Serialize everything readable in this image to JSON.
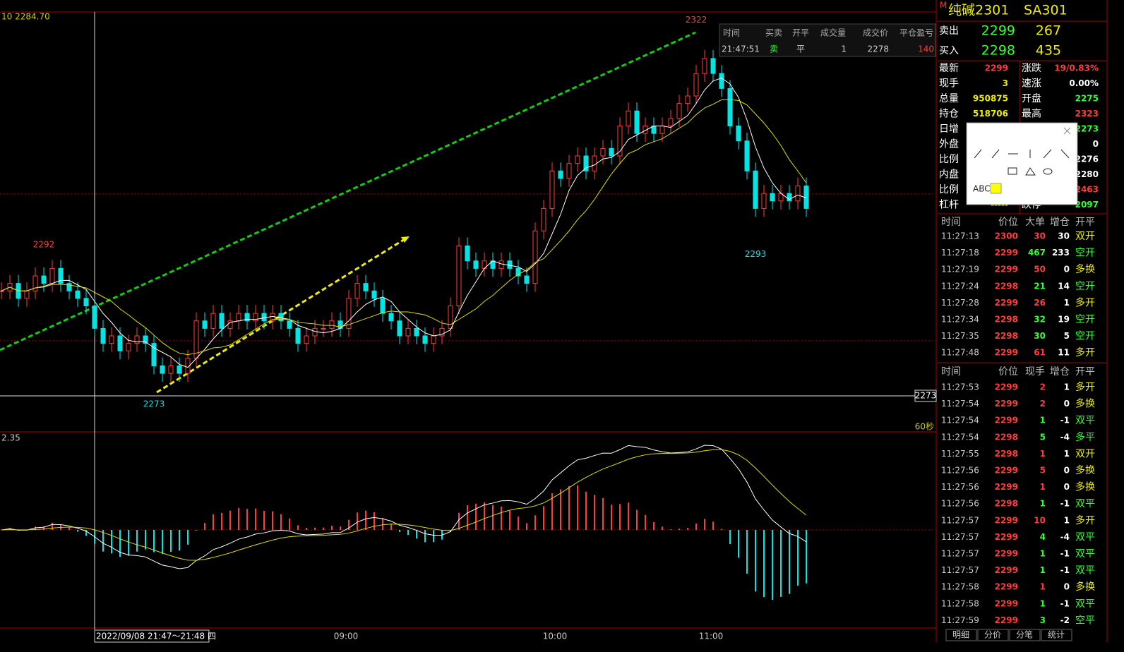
{
  "chart_data": {
    "type": "candlestick",
    "corner_label": "10 2284.70",
    "ylim": [
      2268.2,
      2324.2
    ],
    "closes": [
      2287,
      2288,
      2286,
      2287,
      2289,
      2288,
      2290,
      2288,
      2287,
      2286,
      2285,
      2282,
      2280,
      2281,
      2279,
      2280,
      2281,
      2280,
      2277,
      2276,
      2277,
      2276,
      2278,
      2283,
      2282,
      2284,
      2282,
      2283,
      2284,
      2283,
      2284,
      2283,
      2284,
      2283,
      2282,
      2280,
      2281,
      2282,
      2282,
      2283,
      2282,
      2286,
      2288,
      2287,
      2286,
      2284,
      2283,
      2281,
      2282,
      2281,
      2280,
      2281,
      2282,
      2285,
      2293,
      2291,
      2290,
      2291,
      2290,
      2291,
      2290,
      2289,
      2288,
      2295,
      2298,
      2303,
      2302,
      2304,
      2305,
      2303,
      2305,
      2306,
      2305,
      2309,
      2311,
      2308,
      2309,
      2308,
      2309,
      2310,
      2312,
      2313,
      2316,
      2318,
      2316,
      2314,
      2309,
      2307,
      2303,
      2298,
      2300,
      2299,
      2300,
      2299,
      2301,
      2298
    ],
    "annotations": [
      {
        "text": "2322",
        "value": 2322,
        "index": 82
      },
      {
        "text": "2292",
        "value": 2292,
        "index": 5
      },
      {
        "text": "2273",
        "value": 2273,
        "index": 18
      },
      {
        "text": "2293",
        "value": 2293,
        "index": 89
      }
    ],
    "price_line": {
      "value": 2273,
      "label": "2273"
    },
    "period": "60秒",
    "macd_label": "2.35",
    "x_cursor_label": "2022/09/08 21:47～21:48 四",
    "xticks": [
      "09:00",
      "10:00",
      "11:00"
    ],
    "trade_popup": {
      "headers": [
        "时间",
        "买卖",
        "开平",
        "成交量",
        "成交价",
        "平仓盈亏"
      ],
      "row": [
        "21:47:51",
        "卖",
        "平",
        "1",
        "2278",
        "140"
      ]
    }
  },
  "quote": {
    "mark": "M",
    "name": "纯碱2301",
    "code": "SA301",
    "ask": {
      "label": "卖出",
      "price": "2299",
      "volume": "267"
    },
    "bid": {
      "label": "买入",
      "price": "2298",
      "volume": "435"
    },
    "left": [
      [
        "最新",
        "2299"
      ],
      [
        "现手",
        "3"
      ],
      [
        "总量",
        "950875"
      ],
      [
        "持仓",
        "518706"
      ],
      [
        "日增",
        ""
      ],
      [
        "外盘",
        ""
      ],
      [
        "比例",
        ""
      ],
      [
        "内盘",
        ""
      ],
      [
        "比例",
        ""
      ],
      [
        "杠杆",
        "-----"
      ]
    ],
    "right": [
      [
        "涨跌",
        "19/0.83%"
      ],
      [
        "速涨",
        "0.00%"
      ],
      [
        "开盘",
        "2275"
      ],
      [
        "最高",
        "2323"
      ],
      [
        "",
        "2273"
      ],
      [
        "",
        "0"
      ],
      [
        "",
        "2276"
      ],
      [
        "",
        "2280"
      ],
      [
        "",
        "2463"
      ],
      [
        "跌停",
        "2097"
      ]
    ]
  },
  "table_big": {
    "headers": [
      "时间",
      "价位",
      "大单",
      "增仓",
      "开平"
    ],
    "rows": [
      [
        "11:27:13",
        "2300",
        "30",
        "30",
        "双开"
      ],
      [
        "11:27:18",
        "2299",
        "467",
        "233",
        "空开"
      ],
      [
        "11:27:19",
        "2299",
        "50",
        "0",
        "多换"
      ],
      [
        "11:27:24",
        "2298",
        "21",
        "14",
        "空开"
      ],
      [
        "11:27:28",
        "2299",
        "26",
        "1",
        "多开"
      ],
      [
        "11:27:34",
        "2298",
        "32",
        "19",
        "空开"
      ],
      [
        "11:27:35",
        "2298",
        "30",
        "5",
        "空开"
      ],
      [
        "11:27:48",
        "2299",
        "61",
        "11",
        "多开"
      ]
    ]
  },
  "table_ticks": {
    "headers": [
      "时间",
      "价位",
      "现手",
      "增仓",
      "开平"
    ],
    "rows": [
      [
        "11:27:53",
        "2299",
        "2",
        "1",
        "多开"
      ],
      [
        "11:27:54",
        "2299",
        "2",
        "0",
        "多换"
      ],
      [
        "11:27:54",
        "2299",
        "1",
        "-1",
        "双平"
      ],
      [
        "11:27:54",
        "2298",
        "5",
        "-4",
        "多平"
      ],
      [
        "11:27:55",
        "2298",
        "1",
        "1",
        "双开"
      ],
      [
        "11:27:56",
        "2299",
        "5",
        "0",
        "多换"
      ],
      [
        "11:27:56",
        "2299",
        "1",
        "0",
        "多换"
      ],
      [
        "11:27:56",
        "2298",
        "1",
        "-1",
        "双平"
      ],
      [
        "11:27:57",
        "2299",
        "10",
        "1",
        "多开"
      ],
      [
        "11:27:57",
        "2299",
        "4",
        "-4",
        "双平"
      ],
      [
        "11:27:57",
        "2299",
        "1",
        "-1",
        "双平"
      ],
      [
        "11:27:57",
        "2299",
        "1",
        "-1",
        "双平"
      ],
      [
        "11:27:58",
        "2299",
        "1",
        "0",
        "多换"
      ],
      [
        "11:27:58",
        "2299",
        "1",
        "-1",
        "双平"
      ],
      [
        "11:27:59",
        "2299",
        "3",
        "-2",
        "空平"
      ]
    ]
  },
  "tabs": [
    "明细",
    "分价",
    "分笔",
    "统计"
  ],
  "toolbar": {
    "text": "ABC"
  }
}
